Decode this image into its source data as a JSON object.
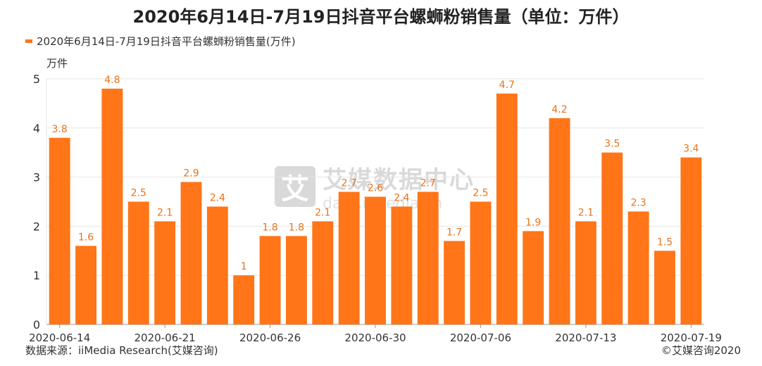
{
  "title": "2020年6月14日-7月19日抖音平台螺蛳粉销售量（单位：万件）",
  "legend_label": "2020年6月14日-7月19日抖音平台螺蛳粉销售量(万件)",
  "unit_label": "万件",
  "source": "数据来源：iiMedia Research(艾媒咨询)",
  "copyright": "©艾媒咨询2020",
  "watermark": {
    "logo": "艾",
    "name": "艾媒数据中心",
    "url": "data.iimedia.cn"
  },
  "colors": {
    "bar": "#FF7518",
    "label": "#E8731A",
    "grid": "#e6e6e6",
    "axis": "#999999"
  },
  "chart_data": {
    "type": "bar",
    "title": "2020年6月14日-7月19日抖音平台螺蛳粉销售量（单位：万件）",
    "ylabel": "万件",
    "ylim": [
      0,
      5
    ],
    "yticks": [
      0,
      1,
      2,
      3,
      4,
      5
    ],
    "grid": true,
    "legend": "top-left",
    "xtick_labels": [
      "2020-06-14",
      "2020-06-21",
      "2020-06-26",
      "2020-06-30",
      "2020-07-06",
      "2020-07-13",
      "2020-07-19"
    ],
    "xtick_index": [
      0,
      4,
      8,
      12,
      16,
      20,
      24
    ],
    "series": [
      {
        "name": "2020年6月14日-7月19日抖音平台螺蛳粉销售量(万件)",
        "values": [
          3.8,
          1.6,
          4.8,
          2.5,
          2.1,
          2.9,
          2.4,
          1,
          1.8,
          1.8,
          2.1,
          2.7,
          2.6,
          2.4,
          2.7,
          1.7,
          2.5,
          4.7,
          1.9,
          4.2,
          2.1,
          3.5,
          2.3,
          1.5,
          3.4
        ]
      }
    ]
  }
}
